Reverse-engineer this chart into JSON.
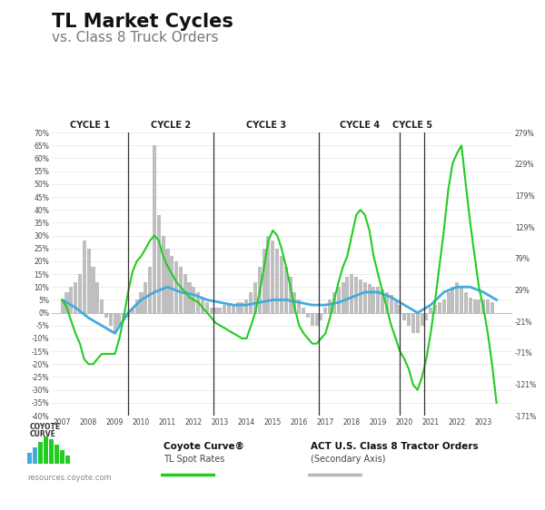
{
  "title1": "TL Market Cycles",
  "title2": "vs. Class 8 Truck Orders",
  "cycles": [
    "CYCLE 1",
    "CYCLE 2",
    "CYCLE 3",
    "CYCLE 4",
    "CYCLE 5"
  ],
  "cycle_boundaries": [
    2009.5,
    2012.75,
    2016.75,
    2019.83,
    2020.75
  ],
  "xlim": [
    2006.6,
    2024.1
  ],
  "left_ylim": [
    -40,
    70
  ],
  "right_ylim": [
    -171,
    279
  ],
  "background_color": "#ffffff",
  "grid_color": "#dddddd",
  "bar_color": "#b8b8b8",
  "line_green_color": "#22cc22",
  "line_blue_color": "#44aadd",
  "watermark": "resources.coyote.com",
  "green_line_x": [
    2007.0,
    2007.17,
    2007.33,
    2007.5,
    2007.67,
    2007.83,
    2008.0,
    2008.17,
    2008.33,
    2008.5,
    2008.67,
    2008.83,
    2009.0,
    2009.17,
    2009.33,
    2009.5,
    2009.67,
    2009.83,
    2010.0,
    2010.17,
    2010.33,
    2010.5,
    2010.67,
    2010.83,
    2011.0,
    2011.17,
    2011.33,
    2011.5,
    2011.67,
    2011.83,
    2012.0,
    2012.17,
    2012.33,
    2012.5,
    2012.67,
    2012.83,
    2013.0,
    2013.17,
    2013.33,
    2013.5,
    2013.67,
    2013.83,
    2014.0,
    2014.17,
    2014.33,
    2014.5,
    2014.67,
    2014.83,
    2015.0,
    2015.17,
    2015.33,
    2015.5,
    2015.67,
    2015.83,
    2016.0,
    2016.17,
    2016.33,
    2016.5,
    2016.67,
    2016.83,
    2017.0,
    2017.17,
    2017.33,
    2017.5,
    2017.67,
    2017.83,
    2018.0,
    2018.17,
    2018.33,
    2018.5,
    2018.67,
    2018.83,
    2019.0,
    2019.17,
    2019.33,
    2019.5,
    2019.67,
    2019.83,
    2020.0,
    2020.17,
    2020.33,
    2020.5,
    2020.67,
    2020.83,
    2021.0,
    2021.17,
    2021.33,
    2021.5,
    2021.67,
    2021.83,
    2022.0,
    2022.17,
    2022.33,
    2022.5,
    2022.67,
    2022.83,
    2023.0,
    2023.17,
    2023.33,
    2023.5
  ],
  "green_line_y": [
    5,
    2,
    -3,
    -8,
    -12,
    -18,
    -20,
    -20,
    -18,
    -16,
    -16,
    -16,
    -16,
    -10,
    -2,
    8,
    16,
    20,
    22,
    25,
    28,
    30,
    28,
    22,
    18,
    15,
    12,
    10,
    8,
    6,
    5,
    4,
    2,
    0,
    -2,
    -4,
    -5,
    -6,
    -7,
    -8,
    -9,
    -10,
    -10,
    -5,
    0,
    8,
    18,
    28,
    32,
    30,
    25,
    18,
    10,
    2,
    -5,
    -8,
    -10,
    -12,
    -12,
    -10,
    -8,
    -2,
    5,
    12,
    18,
    22,
    30,
    38,
    40,
    38,
    32,
    22,
    15,
    8,
    2,
    -5,
    -10,
    -15,
    -18,
    -22,
    -28,
    -30,
    -25,
    -18,
    -8,
    5,
    18,
    32,
    48,
    58,
    62,
    65,
    50,
    35,
    22,
    10,
    2,
    -8,
    -20,
    -35
  ],
  "blue_line_x": [
    2007.0,
    2007.5,
    2008.0,
    2008.5,
    2009.0,
    2009.5,
    2010.0,
    2010.5,
    2011.0,
    2011.5,
    2012.0,
    2012.5,
    2013.0,
    2013.5,
    2014.0,
    2014.5,
    2015.0,
    2015.5,
    2016.0,
    2016.5,
    2017.0,
    2017.5,
    2018.0,
    2018.5,
    2019.0,
    2019.5,
    2020.0,
    2020.5,
    2021.0,
    2021.5,
    2022.0,
    2022.5,
    2023.0,
    2023.5
  ],
  "blue_line_y": [
    5,
    2,
    -2,
    -5,
    -8,
    0,
    5,
    8,
    10,
    8,
    7,
    5,
    4,
    3,
    3,
    4,
    5,
    5,
    4,
    3,
    3,
    4,
    6,
    8,
    8,
    6,
    3,
    0,
    3,
    8,
    10,
    10,
    8,
    5
  ],
  "bar_x": [
    2007.0,
    2007.17,
    2007.33,
    2007.5,
    2007.67,
    2007.83,
    2008.0,
    2008.17,
    2008.33,
    2008.5,
    2008.67,
    2008.83,
    2009.0,
    2009.17,
    2009.33,
    2009.5,
    2009.67,
    2009.83,
    2010.0,
    2010.17,
    2010.33,
    2010.5,
    2010.67,
    2010.83,
    2011.0,
    2011.17,
    2011.33,
    2011.5,
    2011.67,
    2011.83,
    2012.0,
    2012.17,
    2012.33,
    2012.5,
    2012.67,
    2012.83,
    2013.0,
    2013.17,
    2013.33,
    2013.5,
    2013.67,
    2013.83,
    2014.0,
    2014.17,
    2014.33,
    2014.5,
    2014.67,
    2014.83,
    2015.0,
    2015.17,
    2015.33,
    2015.5,
    2015.67,
    2015.83,
    2016.0,
    2016.17,
    2016.33,
    2016.5,
    2016.67,
    2016.83,
    2017.0,
    2017.17,
    2017.33,
    2017.5,
    2017.67,
    2017.83,
    2018.0,
    2018.17,
    2018.33,
    2018.5,
    2018.67,
    2018.83,
    2019.0,
    2019.17,
    2019.33,
    2019.5,
    2019.67,
    2019.83,
    2020.0,
    2020.17,
    2020.33,
    2020.5,
    2020.67,
    2020.83,
    2021.0,
    2021.17,
    2021.33,
    2021.5,
    2021.67,
    2021.83,
    2022.0,
    2022.17,
    2022.33,
    2022.5,
    2022.67,
    2022.83,
    2023.0,
    2023.17,
    2023.33
  ],
  "bar_y": [
    5,
    8,
    10,
    12,
    15,
    28,
    25,
    18,
    12,
    5,
    -2,
    -5,
    -8,
    -5,
    -3,
    -2,
    2,
    5,
    8,
    12,
    18,
    65,
    38,
    30,
    25,
    22,
    20,
    18,
    15,
    12,
    10,
    8,
    6,
    4,
    2,
    2,
    2,
    3,
    3,
    3,
    4,
    4,
    5,
    8,
    12,
    18,
    25,
    30,
    28,
    25,
    22,
    18,
    14,
    8,
    5,
    2,
    -2,
    -5,
    -5,
    -3,
    2,
    5,
    8,
    10,
    12,
    14,
    15,
    14,
    13,
    12,
    11,
    10,
    10,
    9,
    8,
    7,
    5,
    3,
    -3,
    -5,
    -8,
    -8,
    -5,
    -3,
    2,
    3,
    4,
    5,
    8,
    10,
    12,
    10,
    8,
    6,
    5,
    5,
    5,
    5,
    4
  ]
}
